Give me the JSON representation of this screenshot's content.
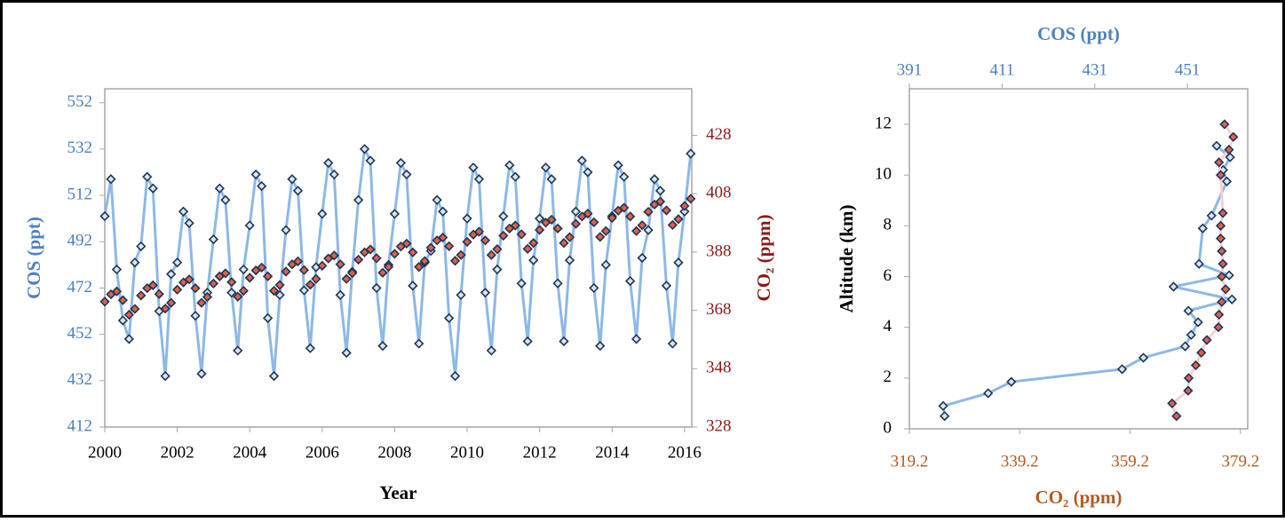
{
  "chart_data": [
    {
      "type": "line",
      "x_label": "Year",
      "y_label": "COS (ppt)",
      "y2_label": "CO₂ (ppm)",
      "y_color": "#4f81bd",
      "y2_color": "#8b1a1a",
      "marker_edge": "#1f3552",
      "xlim": [
        2000,
        2016.2
      ],
      "xticks": [
        2000,
        2002,
        2004,
        2006,
        2008,
        2010,
        2012,
        2014,
        2016
      ],
      "ylim": [
        412,
        558
      ],
      "yticks": [
        412,
        432,
        452,
        472,
        492,
        512,
        532,
        552
      ],
      "y2lim": [
        328,
        444
      ],
      "y2ticks": [
        328,
        348,
        368,
        388,
        408,
        428
      ],
      "x": [
        2000,
        2000.17,
        2000.33,
        2000.5,
        2000.67,
        2000.83,
        2001,
        2001.17,
        2001.33,
        2001.5,
        2001.67,
        2001.83,
        2002,
        2002.17,
        2002.33,
        2002.5,
        2002.67,
        2002.83,
        2003,
        2003.17,
        2003.33,
        2003.5,
        2003.67,
        2003.83,
        2004,
        2004.17,
        2004.33,
        2004.5,
        2004.67,
        2004.83,
        2005,
        2005.17,
        2005.33,
        2005.5,
        2005.67,
        2005.83,
        2006,
        2006.17,
        2006.33,
        2006.5,
        2006.67,
        2006.83,
        2007,
        2007.17,
        2007.33,
        2007.5,
        2007.67,
        2007.83,
        2008,
        2008.17,
        2008.33,
        2008.5,
        2008.67,
        2008.83,
        2009,
        2009.17,
        2009.33,
        2009.5,
        2009.67,
        2009.83,
        2010,
        2010.17,
        2010.33,
        2010.5,
        2010.67,
        2010.83,
        2011,
        2011.17,
        2011.33,
        2011.5,
        2011.67,
        2011.83,
        2012,
        2012.17,
        2012.33,
        2012.5,
        2012.67,
        2012.83,
        2013,
        2013.17,
        2013.33,
        2013.5,
        2013.67,
        2013.83,
        2014,
        2014.17,
        2014.33,
        2014.5,
        2014.67,
        2014.83,
        2015,
        2015.17,
        2015.33,
        2015.5,
        2015.67,
        2015.83,
        2016,
        2016.17
      ],
      "series": [
        {
          "color": "#d6e6f7",
          "line_color": "#8db8e8",
          "values": [
            503,
            519,
            480,
            458,
            450,
            483,
            490,
            520,
            515,
            462,
            434,
            478,
            483,
            505,
            500,
            460,
            435,
            470,
            493,
            515,
            510,
            470,
            445,
            480,
            499,
            521,
            516,
            459,
            434,
            469,
            497,
            519,
            514,
            471,
            446,
            481,
            504,
            526,
            521,
            469,
            444,
            479,
            510,
            532,
            527,
            472,
            447,
            482,
            504,
            526,
            521,
            473,
            448,
            483,
            488,
            510,
            505,
            459,
            434,
            469,
            502,
            524,
            519,
            470,
            445,
            480,
            503,
            525,
            520,
            474,
            449,
            484,
            502,
            524,
            519,
            474,
            449,
            484,
            505,
            527,
            522,
            472,
            447,
            482,
            503,
            525,
            520,
            475,
            450,
            485,
            497,
            519,
            514,
            473,
            448,
            483,
            505,
            530
          ]
        },
        {
          "color": "#e0604a",
          "axis": "y2",
          "values": [
            371.0,
            373.5,
            374.5,
            371.5,
            366.5,
            368.5,
            373.1,
            375.6,
            376.6,
            373.6,
            368.6,
            370.6,
            375.1,
            377.6,
            378.6,
            375.6,
            370.6,
            372.6,
            377.2,
            379.7,
            380.7,
            377.7,
            372.7,
            374.7,
            379.2,
            381.7,
            382.7,
            379.7,
            374.7,
            376.7,
            381.3,
            383.8,
            384.8,
            381.8,
            376.8,
            378.8,
            383.3,
            385.8,
            386.8,
            383.8,
            378.8,
            380.8,
            385.4,
            387.9,
            388.9,
            385.9,
            380.9,
            382.9,
            387.4,
            389.9,
            390.9,
            387.9,
            382.9,
            384.9,
            389.5,
            392.0,
            393.0,
            390.0,
            385.0,
            387.0,
            391.5,
            394.0,
            395.0,
            392.0,
            387.0,
            389.0,
            393.6,
            396.1,
            397.1,
            394.1,
            389.1,
            391.1,
            395.6,
            398.1,
            399.1,
            396.1,
            391.1,
            393.1,
            397.7,
            400.2,
            401.2,
            398.2,
            393.2,
            395.2,
            399.7,
            402.2,
            403.2,
            400.2,
            395.2,
            397.2,
            401.8,
            404.3,
            405.3,
            402.3,
            397.3,
            399.3,
            403.8,
            406.3
          ]
        }
      ]
    },
    {
      "type": "profile",
      "x_label": "CO₂ (ppm)",
      "x2_label": "COS (ppt)",
      "y_label": "Altitude (km)",
      "x_color": "#b35a1f",
      "x2_color": "#4f81bd",
      "marker_edge": "#1f3552",
      "xlim": [
        319.2,
        380.5
      ],
      "xticks": [
        319.2,
        339.2,
        359.2,
        379.2
      ],
      "x2lim": [
        391,
        464
      ],
      "x2ticks": [
        391,
        411,
        431,
        451
      ],
      "ylim": [
        0,
        13.4
      ],
      "yticks": [
        0,
        2,
        4,
        6,
        8,
        10,
        12
      ],
      "series": [
        {
          "color": "#d6e6f7",
          "line_color": "#8db8e8",
          "axis": "x2",
          "x": [
            398.6,
            398.3,
            408,
            413,
            436.9,
            441.5,
            450.5,
            451.8,
            453.3,
            451.2,
            460.6,
            448,
            460,
            453.5,
            454.3,
            456.2,
            459.5,
            458.7,
            460.2,
            457.3
          ],
          "y": [
            0.5,
            0.9,
            1.4,
            1.85,
            2.35,
            2.8,
            3.25,
            3.7,
            4.2,
            4.65,
            5.1,
            5.6,
            6.05,
            6.5,
            7.9,
            8.4,
            9.75,
            10.2,
            10.7,
            11.15
          ]
        },
        {
          "color": "#e0604a",
          "line_color": "#f4d2d2",
          "x": [
            367.6,
            366.8,
            369.7,
            369.8,
            371.1,
            372.1,
            373.1,
            375.2,
            375.3,
            375.8,
            376.5,
            375.8,
            376.0,
            375.8,
            375.6,
            375.6,
            376.0,
            375.6,
            375.3,
            377.1,
            377.9,
            376.3
          ],
          "y": [
            0.5,
            1.0,
            1.5,
            2.0,
            2.5,
            3.0,
            3.5,
            4.0,
            4.5,
            5.0,
            5.5,
            6.0,
            6.5,
            7.0,
            7.5,
            8.0,
            8.5,
            10.0,
            10.5,
            11.0,
            11.5,
            12.0
          ]
        }
      ]
    }
  ]
}
